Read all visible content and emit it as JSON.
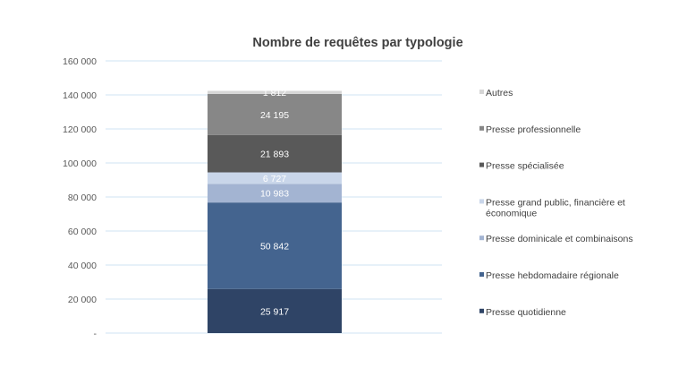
{
  "chart_data": {
    "type": "bar",
    "stacked": true,
    "title": "Nombre de requêtes par typologie",
    "xlabel": "",
    "ylabel": "",
    "ylim": [
      0,
      160000
    ],
    "y_ticks": [
      {
        "value": 0,
        "label": "-"
      },
      {
        "value": 20000,
        "label": "20 000"
      },
      {
        "value": 40000,
        "label": "40 000"
      },
      {
        "value": 60000,
        "label": "60 000"
      },
      {
        "value": 80000,
        "label": "80 000"
      },
      {
        "value": 100000,
        "label": "100 000"
      },
      {
        "value": 120000,
        "label": "120 000"
      },
      {
        "value": 140000,
        "label": "140 000"
      },
      {
        "value": 160000,
        "label": "160 000"
      }
    ],
    "grid": true,
    "legend_position": "right",
    "categories": [
      ""
    ],
    "series": [
      {
        "name": "Presse quotidienne",
        "values": [
          25917
        ],
        "label": "25 917",
        "color": "#2f4466"
      },
      {
        "name": "Presse hebdomadaire régionale",
        "values": [
          50842
        ],
        "label": "50 842",
        "color": "#44648f"
      },
      {
        "name": "Presse dominicale et combinaisons",
        "values": [
          10983
        ],
        "label": "10 983",
        "color": "#a3b4d2"
      },
      {
        "name": "Presse grand public, financière et économique",
        "legend_lines": [
          "Presse grand public, financière et",
          "économique"
        ],
        "values": [
          6727
        ],
        "label": "6 727",
        "color": "#c9d6ea"
      },
      {
        "name": "Presse spécialisée",
        "values": [
          21893
        ],
        "label": "21 893",
        "color": "#595959"
      },
      {
        "name": "Presse professionnelle",
        "values": [
          24195
        ],
        "label": "24 195",
        "color": "#878787"
      },
      {
        "name": "Autres",
        "values": [
          1812
        ],
        "label": "1 812",
        "color": "#d6d6d6"
      }
    ]
  }
}
